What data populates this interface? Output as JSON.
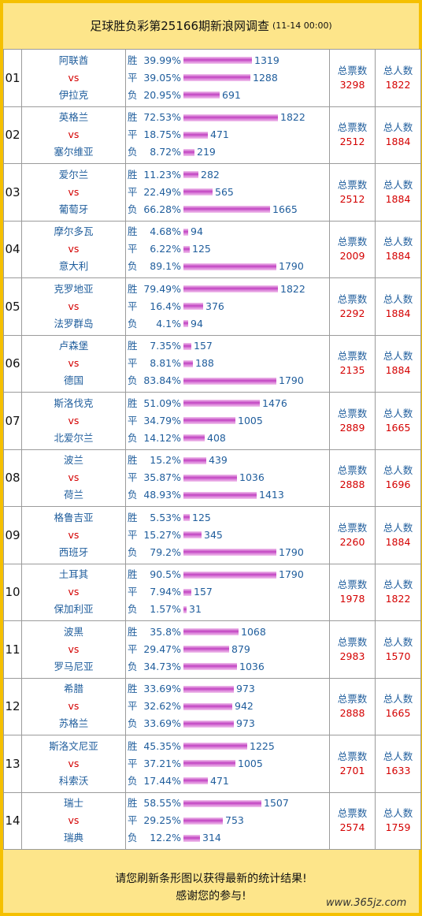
{
  "header": {
    "title": "足球胜负彩第25166期新浪网调查",
    "date": "(11-14 00:00)"
  },
  "labels": {
    "win": "胜",
    "draw": "平",
    "loss": "负",
    "vs": "vs",
    "total_votes": "总票数",
    "total_people": "总人数"
  },
  "matches": [
    {
      "num": "01",
      "home": "阿联酋",
      "away": "伊拉克",
      "win_pct": "39.99%",
      "draw_pct": "39.05%",
      "loss_pct": "20.95%",
      "win": "1319",
      "draw": "1288",
      "loss": "691",
      "votes": "3298",
      "people": "1822"
    },
    {
      "num": "02",
      "home": "英格兰",
      "away": "塞尔维亚",
      "win_pct": "72.53%",
      "draw_pct": "18.75%",
      "loss_pct": "8.72%",
      "win": "1822",
      "draw": "471",
      "loss": "219",
      "votes": "2512",
      "people": "1884"
    },
    {
      "num": "03",
      "home": "爱尔兰",
      "away": "葡萄牙",
      "win_pct": "11.23%",
      "draw_pct": "22.49%",
      "loss_pct": "66.28%",
      "win": "282",
      "draw": "565",
      "loss": "1665",
      "votes": "2512",
      "people": "1884"
    },
    {
      "num": "04",
      "home": "摩尔多瓦",
      "away": "意大利",
      "win_pct": "4.68%",
      "draw_pct": "6.22%",
      "loss_pct": "89.1%",
      "win": "94",
      "draw": "125",
      "loss": "1790",
      "votes": "2009",
      "people": "1884"
    },
    {
      "num": "05",
      "home": "克罗地亚",
      "away": "法罗群岛",
      "win_pct": "79.49%",
      "draw_pct": "16.4%",
      "loss_pct": "4.1%",
      "win": "1822",
      "draw": "376",
      "loss": "94",
      "votes": "2292",
      "people": "1884"
    },
    {
      "num": "06",
      "home": "卢森堡",
      "away": "德国",
      "win_pct": "7.35%",
      "draw_pct": "8.81%",
      "loss_pct": "83.84%",
      "win": "157",
      "draw": "188",
      "loss": "1790",
      "votes": "2135",
      "people": "1884"
    },
    {
      "num": "07",
      "home": "斯洛伐克",
      "away": "北爱尔兰",
      "win_pct": "51.09%",
      "draw_pct": "34.79%",
      "loss_pct": "14.12%",
      "win": "1476",
      "draw": "1005",
      "loss": "408",
      "votes": "2889",
      "people": "1665"
    },
    {
      "num": "08",
      "home": "波兰",
      "away": "荷兰",
      "win_pct": "15.2%",
      "draw_pct": "35.87%",
      "loss_pct": "48.93%",
      "win": "439",
      "draw": "1036",
      "loss": "1413",
      "votes": "2888",
      "people": "1696"
    },
    {
      "num": "09",
      "home": "格鲁吉亚",
      "away": "西班牙",
      "win_pct": "5.53%",
      "draw_pct": "15.27%",
      "loss_pct": "79.2%",
      "win": "125",
      "draw": "345",
      "loss": "1790",
      "votes": "2260",
      "people": "1884"
    },
    {
      "num": "10",
      "home": "土耳其",
      "away": "保加利亚",
      "win_pct": "90.5%",
      "draw_pct": "7.94%",
      "loss_pct": "1.57%",
      "win": "1790",
      "draw": "157",
      "loss": "31",
      "votes": "1978",
      "people": "1822"
    },
    {
      "num": "11",
      "home": "波黑",
      "away": "罗马尼亚",
      "win_pct": "35.8%",
      "draw_pct": "29.47%",
      "loss_pct": "34.73%",
      "win": "1068",
      "draw": "879",
      "loss": "1036",
      "votes": "2983",
      "people": "1570"
    },
    {
      "num": "12",
      "home": "希腊",
      "away": "苏格兰",
      "win_pct": "33.69%",
      "draw_pct": "32.62%",
      "loss_pct": "33.69%",
      "win": "973",
      "draw": "942",
      "loss": "973",
      "votes": "2888",
      "people": "1665"
    },
    {
      "num": "13",
      "home": "斯洛文尼亚",
      "away": "科索沃",
      "win_pct": "45.35%",
      "draw_pct": "37.21%",
      "loss_pct": "17.44%",
      "win": "1225",
      "draw": "1005",
      "loss": "471",
      "votes": "2701",
      "people": "1633"
    },
    {
      "num": "14",
      "home": "瑞士",
      "away": "瑞典",
      "win_pct": "58.55%",
      "draw_pct": "29.25%",
      "loss_pct": "12.2%",
      "win": "1507",
      "draw": "753",
      "loss": "314",
      "votes": "2574",
      "people": "1759"
    }
  ],
  "footer": {
    "line1": "请您刷新条形图以获得最新的统计结果!",
    "line2": "感谢您的参与!"
  },
  "watermark": "www.365jz.com",
  "colors": {
    "accent_border": "#f5c000",
    "background": "#fde58a",
    "text_blue": "#1f5d9c",
    "text_red": "#d40000",
    "bar": "#c040c0"
  }
}
